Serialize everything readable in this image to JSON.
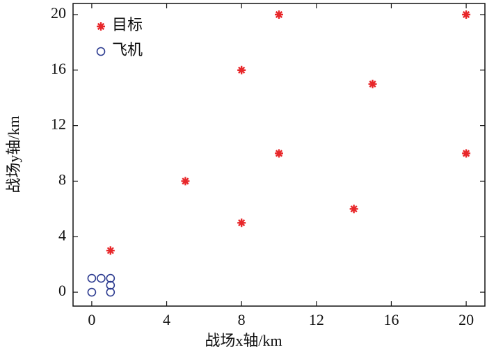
{
  "chart_data": {
    "type": "scatter",
    "x_label": "战场x轴/km",
    "y_label": "战场y轴/km",
    "xlim": [
      -1,
      21
    ],
    "ylim": [
      -1,
      20.8
    ],
    "xticks": [
      0,
      4,
      8,
      12,
      16,
      20
    ],
    "yticks": [
      0,
      4,
      8,
      12,
      16,
      20
    ],
    "legend": "upper left",
    "series": [
      {
        "name": "目标",
        "color": "#e8272a",
        "marker": "star",
        "x": [
          1,
          5,
          8,
          8,
          10,
          10,
          14,
          15,
          20,
          20
        ],
        "values": [
          3,
          8,
          5,
          16,
          10,
          20,
          6,
          15,
          10,
          20
        ]
      },
      {
        "name": "飞机",
        "color": "#2b3a8f",
        "marker": "circle",
        "x": [
          0,
          0,
          0.5,
          1,
          1,
          1
        ],
        "values": [
          0,
          1,
          1,
          1,
          0.5,
          0
        ]
      }
    ]
  }
}
